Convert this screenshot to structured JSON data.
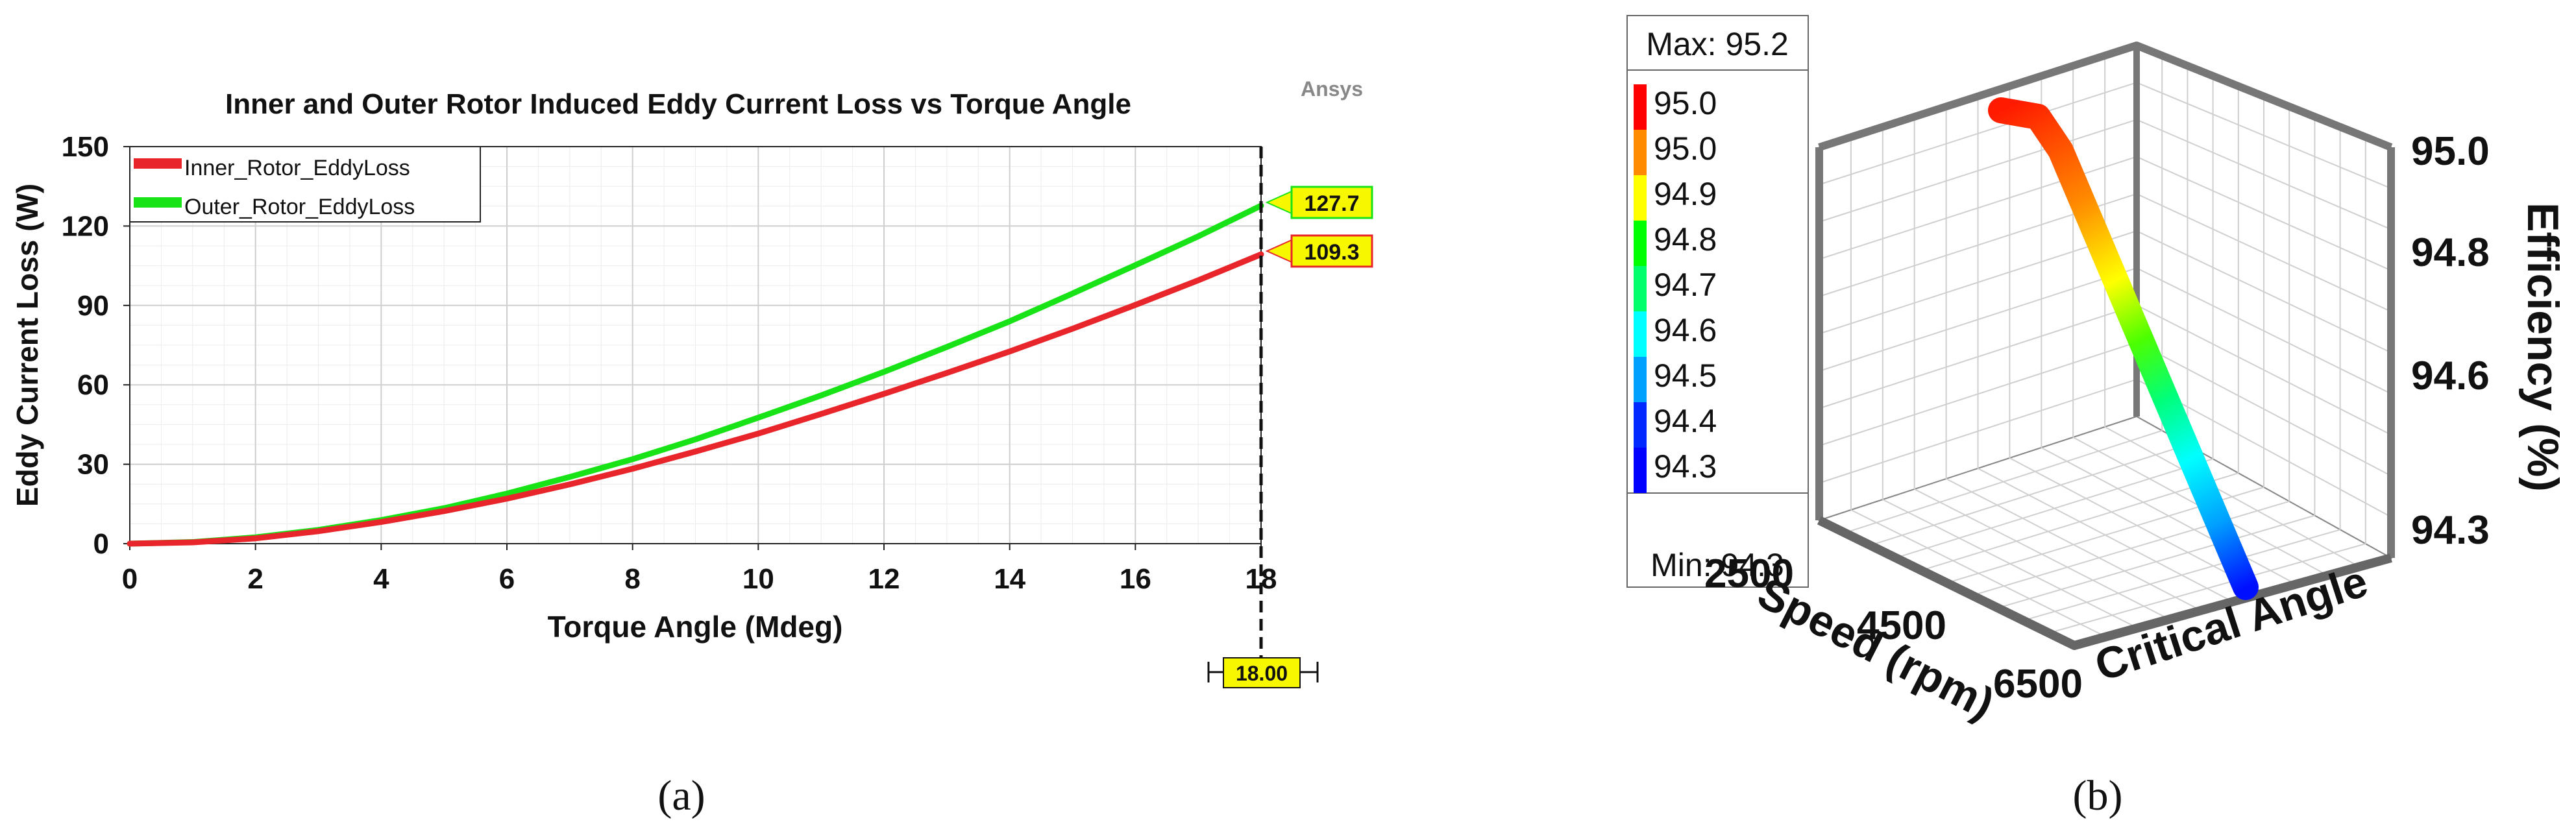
{
  "figure": {
    "panel_a_caption": "(a)",
    "panel_b_caption": "(b)"
  },
  "chart_data": [
    {
      "type": "line",
      "title": "Inner and Outer Rotor Induced Eddy Current Loss vs Torque Angle",
      "watermark": "Ansys",
      "xlabel": "Torque Angle (Mdeg)",
      "ylabel": "Eddy Current Loss (W)",
      "xlim": [
        0,
        18
      ],
      "ylim": [
        0,
        150
      ],
      "xticks": [
        0,
        2,
        4,
        6,
        8,
        10,
        12,
        14,
        16,
        18
      ],
      "yticks": [
        0,
        30,
        60,
        90,
        120,
        150
      ],
      "grid": true,
      "legend_position": "top-left",
      "x": [
        0,
        1,
        2,
        3,
        4,
        5,
        6,
        7,
        8,
        9,
        10,
        11,
        12,
        13,
        14,
        15,
        16,
        17,
        18
      ],
      "series": [
        {
          "name": "Inner_Rotor_EddyLoss",
          "color": "#e8252b",
          "values": [
            0,
            0.5,
            2.0,
            4.7,
            8.2,
            12.3,
            17.0,
            22.4,
            28.3,
            34.8,
            41.6,
            49.0,
            56.6,
            64.5,
            72.6,
            81.2,
            90.2,
            99.5,
            109.3
          ]
        },
        {
          "name": "Outer_Rotor_EddyLoss",
          "color": "#17e317",
          "values": [
            0,
            0.6,
            2.4,
            5.2,
            8.9,
            13.4,
            18.9,
            25.2,
            31.9,
            39.4,
            47.6,
            56.0,
            64.9,
            74.3,
            84.0,
            94.5,
            105.2,
            116.1,
            127.7
          ]
        }
      ],
      "marker": {
        "x_value_label": "18.00",
        "value_labels": [
          "127.7",
          "109.3"
        ],
        "label_colors": {
          "outer_bg": "#f7f700",
          "outer_border": "#17e317",
          "inner_bg": "#f7f700",
          "inner_border": "#e8252b"
        }
      }
    },
    {
      "type": "line3d",
      "zlabel": "Efficiency (%)",
      "xlabel": "Speed (rpm)",
      "ylabel": "Critical Angle",
      "x_ticks": [
        "2500",
        "4500",
        "6500"
      ],
      "z_ticks": [
        "95.0",
        "94.8",
        "94.6",
        "94.3"
      ],
      "legend": {
        "max_label": "Max: 95.2",
        "min_label": "Min: 94.3",
        "levels": [
          "95.0",
          "95.0",
          "94.9",
          "94.8",
          "94.7",
          "94.6",
          "94.5",
          "94.4",
          "94.3"
        ],
        "colors": [
          "#ff0000",
          "#ff8a00",
          "#ffff00",
          "#00ff00",
          "#00ff6a",
          "#00ffff",
          "#00a0ff",
          "#0028ff",
          "#0000ff"
        ]
      },
      "series": [
        {
          "description_values": {
            "speed_rpm": [
              2500,
              6500
            ],
            "efficiency_pct": [
              95.2,
              94.3
            ]
          }
        }
      ]
    }
  ]
}
